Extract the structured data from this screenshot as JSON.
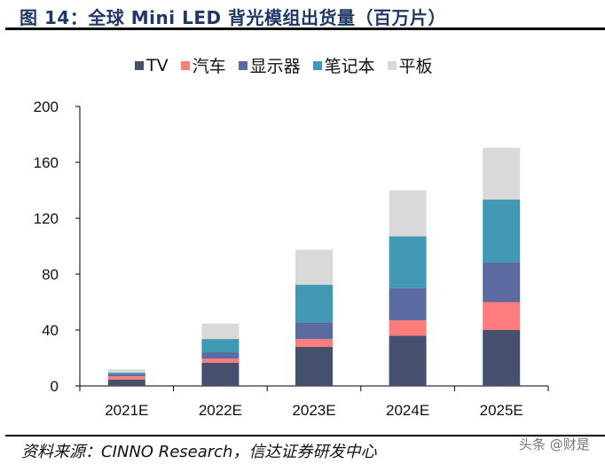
{
  "header": {
    "title": "图 14：全球 Mini LED 背光模组出货量（百万片）"
  },
  "footer": {
    "source": "资料来源：CINNO Research，信达证券研发中心",
    "watermark": "头条 @财是"
  },
  "chart_data": {
    "type": "bar",
    "stacked": true,
    "title": "",
    "xlabel": "",
    "ylabel": "",
    "ylim": [
      0,
      200
    ],
    "yticks": [
      0,
      40,
      80,
      120,
      160,
      200
    ],
    "grid": false,
    "legend_position": "top",
    "categories": [
      "2021E",
      "2022E",
      "2023E",
      "2024E",
      "2025E"
    ],
    "series": [
      {
        "name": "TV",
        "color": "#44506e",
        "values": [
          4.6,
          16.5,
          28,
          36,
          40
        ]
      },
      {
        "name": "汽车",
        "color": "#ff7c7c",
        "values": [
          2.4,
          3,
          5.5,
          11,
          20
        ]
      },
      {
        "name": "显示器",
        "color": "#5b6aa0",
        "values": [
          1.3,
          4.6,
          12,
          23,
          28.5
        ]
      },
      {
        "name": "笔记本",
        "color": "#4299b4",
        "values": [
          1.2,
          9.5,
          27,
          37,
          45
        ]
      },
      {
        "name": "平板",
        "color": "#d9d9d9",
        "values": [
          2.5,
          11,
          25,
          33,
          37
        ]
      }
    ]
  }
}
